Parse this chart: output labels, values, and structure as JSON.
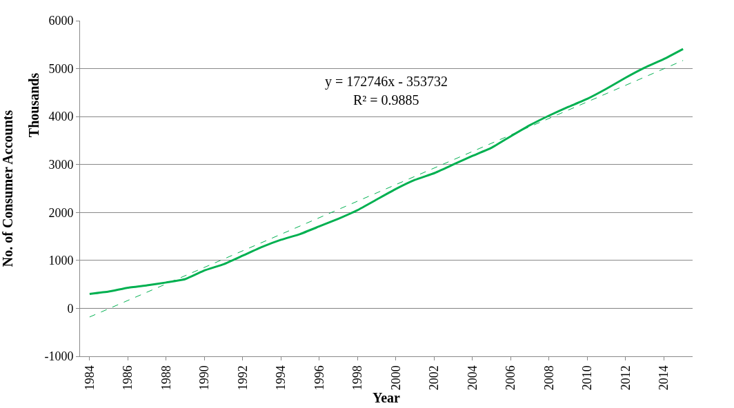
{
  "chart_data": {
    "type": "line",
    "xlabel": "Year",
    "ylabel": "No. of Consumer Accounts",
    "annotations": [
      "y = 172746x - 353732",
      "R² = 0.9885",
      "Thousands"
    ],
    "x": [
      1984,
      1985,
      1986,
      1987,
      1988,
      1989,
      1990,
      1991,
      1992,
      1993,
      1994,
      1995,
      1996,
      1997,
      1998,
      1999,
      2000,
      2001,
      2002,
      2003,
      2004,
      2005,
      2006,
      2007,
      2008,
      2009,
      2010,
      2011,
      2012,
      2013,
      2014,
      2015
    ],
    "xlim": [
      1983.5,
      2015.5
    ],
    "xticks": [
      1984,
      1986,
      1988,
      1990,
      1992,
      1994,
      1996,
      1998,
      2000,
      2002,
      2004,
      2006,
      2008,
      2010,
      2012,
      2014
    ],
    "ylim": [
      -1000,
      6000
    ],
    "yticks": [
      -1000,
      0,
      1000,
      2000,
      3000,
      4000,
      5000,
      6000
    ],
    "grid": "y",
    "marker": "none",
    "series": [
      {
        "color": "#00b050",
        "line_style": "solid",
        "values": [
          300,
          350,
          430,
          480,
          540,
          610,
          790,
          920,
          1100,
          1280,
          1430,
          1550,
          1710,
          1870,
          2050,
          2270,
          2490,
          2680,
          2820,
          3000,
          3180,
          3350,
          3590,
          3820,
          4020,
          4200,
          4370,
          4580,
          4810,
          5020,
          5200,
          5410
        ]
      },
      {
        "type": "line",
        "color": "#00b050",
        "line_style": "dashed",
        "x": [
          1984,
          2015
        ],
        "values": [
          -180,
          5170
        ]
      }
    ]
  }
}
